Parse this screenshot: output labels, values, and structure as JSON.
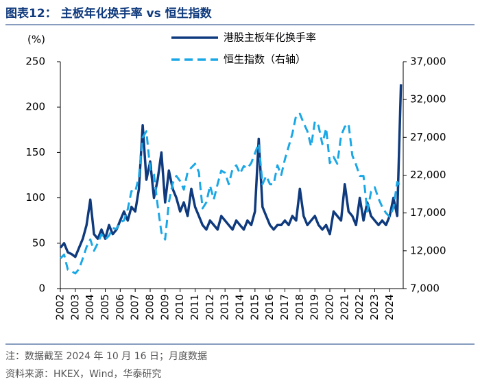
{
  "chart_data": {
    "type": "line",
    "title": "图表12： 主板年化换手率 vs 恒生指数",
    "y_label": "(%)",
    "notes": [
      "注：数据截至 2024 年 10 月 16 日；月度数据",
      "资料来源：HKEX，Wind，华泰研究"
    ],
    "x": [
      2002,
      2002.25,
      2002.5,
      2002.75,
      2003,
      2003.25,
      2003.5,
      2003.75,
      2004,
      2004.25,
      2004.5,
      2004.75,
      2005,
      2005.25,
      2005.5,
      2005.75,
      2006,
      2006.25,
      2006.5,
      2006.75,
      2007,
      2007.25,
      2007.5,
      2007.75,
      2008,
      2008.25,
      2008.5,
      2008.75,
      2009,
      2009.25,
      2009.5,
      2009.75,
      2010,
      2010.25,
      2010.5,
      2010.75,
      2011,
      2011.25,
      2011.5,
      2011.75,
      2012,
      2012.25,
      2012.5,
      2012.75,
      2013,
      2013.25,
      2013.5,
      2013.75,
      2014,
      2014.25,
      2014.5,
      2014.75,
      2015,
      2015.25,
      2015.5,
      2015.75,
      2016,
      2016.25,
      2016.5,
      2016.75,
      2017,
      2017.25,
      2017.5,
      2017.75,
      2018,
      2018.25,
      2018.5,
      2018.75,
      2019,
      2019.25,
      2019.5,
      2019.75,
      2020,
      2020.25,
      2020.5,
      2020.75,
      2021,
      2021.25,
      2021.5,
      2021.75,
      2022,
      2022.25,
      2022.5,
      2022.75,
      2023,
      2023.25,
      2023.5,
      2023.75,
      2024,
      2024.25,
      2024.5,
      2024.75
    ],
    "series": [
      {
        "name": "港股主板年化换手率",
        "color": "#0f3a7d",
        "dash": false,
        "axis": "y",
        "values": [
          45,
          50,
          40,
          38,
          35,
          45,
          55,
          70,
          98,
          60,
          55,
          65,
          55,
          70,
          60,
          65,
          75,
          85,
          75,
          90,
          85,
          110,
          180,
          120,
          140,
          100,
          120,
          150,
          95,
          130,
          110,
          100,
          85,
          95,
          80,
          110,
          90,
          80,
          70,
          65,
          75,
          70,
          65,
          80,
          75,
          70,
          65,
          75,
          70,
          65,
          75,
          70,
          85,
          165,
          90,
          80,
          70,
          65,
          70,
          70,
          75,
          70,
          80,
          75,
          110,
          80,
          70,
          75,
          80,
          70,
          65,
          70,
          60,
          85,
          80,
          75,
          115,
          85,
          80,
          70,
          100,
          75,
          95,
          80,
          75,
          70,
          75,
          70,
          80,
          100,
          80,
          225
        ]
      },
      {
        "name": "恒生指数（右轴）",
        "color": "#1aa7e6",
        "dash": true,
        "axis": "y2",
        "values": [
          11000,
          11500,
          9500,
          9300,
          9000,
          9600,
          11000,
          12500,
          13500,
          12000,
          13000,
          14200,
          13500,
          14000,
          15000,
          14900,
          15800,
          16000,
          17500,
          19900,
          19800,
          21800,
          27000,
          27800,
          22800,
          22100,
          18000,
          14400,
          13500,
          18400,
          20900,
          21900,
          21200,
          20100,
          22400,
          23000,
          23500,
          22400,
          17600,
          18400,
          20600,
          18800,
          20800,
          22600,
          22300,
          20800,
          22800,
          23300,
          22200,
          23200,
          22900,
          23600,
          24900,
          26200,
          20800,
          21900,
          20800,
          20800,
          23300,
          22000,
          24100,
          25800,
          27500,
          29900,
          30100,
          28900,
          27800,
          25800,
          29100,
          28500,
          26100,
          28200,
          23600,
          24400,
          23500,
          27200,
          28400,
          28800,
          24600,
          23400,
          21900,
          21900,
          17200,
          19800,
          20400,
          18900,
          17800,
          17000,
          16500,
          17700,
          21100,
          20500
        ]
      }
    ],
    "xlim": [
      2002,
      2024.9
    ],
    "xticks": [
      2002,
      2003,
      2004,
      2005,
      2006,
      2007,
      2008,
      2009,
      2010,
      2011,
      2012,
      2013,
      2014,
      2015,
      2016,
      2017,
      2018,
      2019,
      2020,
      2021,
      2022,
      2023,
      2024
    ],
    "ylim": [
      0,
      250
    ],
    "yticks": [
      0,
      50,
      100,
      150,
      200,
      250
    ],
    "y2lim": [
      7000,
      37000
    ],
    "y2ticks": [
      {
        "value": 7000,
        "label": "7,000"
      },
      {
        "value": 12000,
        "label": "12,000"
      },
      {
        "value": 17000,
        "label": "17,000"
      },
      {
        "value": 22000,
        "label": "22,000"
      },
      {
        "value": 27000,
        "label": "27,000"
      },
      {
        "value": 32000,
        "label": "32,000"
      },
      {
        "value": 37000,
        "label": "37,000"
      }
    ]
  }
}
